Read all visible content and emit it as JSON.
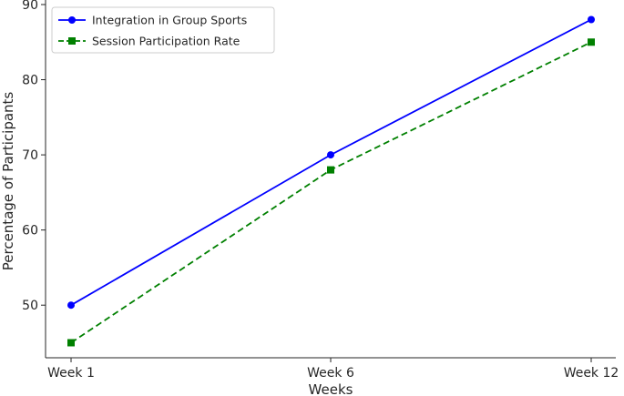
{
  "chart_data": {
    "type": "line",
    "title": "",
    "xlabel": "Weeks",
    "ylabel": "Percentage of Participants",
    "categories": [
      "Week 1",
      "Week 6",
      "Week 12"
    ],
    "ylim": [
      43,
      90
    ],
    "yticks": [
      50,
      60,
      70,
      80,
      90
    ],
    "grid": false,
    "legend_position": "top-left",
    "series": [
      {
        "name": "Integration in Group Sports",
        "values": [
          50,
          70,
          88
        ],
        "color": "#0000ff",
        "marker": "circle",
        "linestyle": "solid"
      },
      {
        "name": "Session Participation Rate",
        "values": [
          45,
          68,
          85
        ],
        "color": "#008000",
        "marker": "square",
        "linestyle": "dashed"
      }
    ]
  }
}
